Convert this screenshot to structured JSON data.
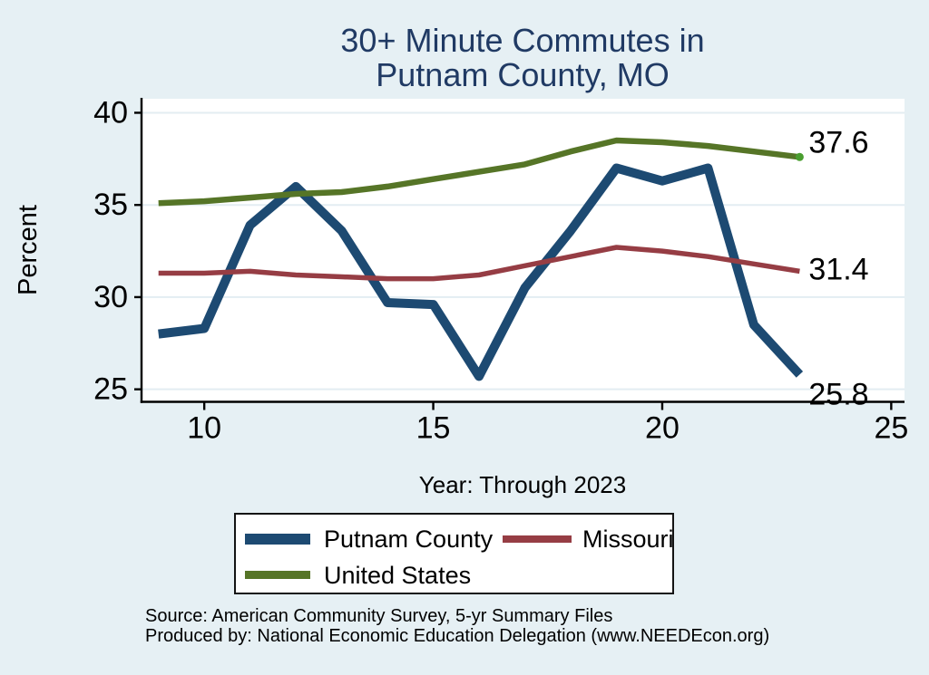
{
  "title": {
    "line1": "30+ Minute Commutes in",
    "line2": "Putnam County, MO"
  },
  "xlabel": "Year: Through 2023",
  "ylabel": "Percent",
  "source": {
    "line1": "Source: American Community Survey, 5-yr Summary Files",
    "line2": "Produced by: National Economic Education Delegation (www.NEEDEcon.org)"
  },
  "legend": {
    "items": [
      {
        "label": "Putnam County",
        "color": "#1d4a72"
      },
      {
        "label": "Missouri",
        "color": "#963d44"
      },
      {
        "label": "United States",
        "color": "#567527"
      }
    ]
  },
  "colors": {
    "background": "#e6f0f4",
    "plot_background": "#ffffff",
    "gridline": "#e3edf2",
    "axis": "#000000",
    "title_text": "#203a64",
    "putnam_line": "#1d4a72",
    "missouri_line": "#963d44",
    "us_line": "#567527",
    "us_end_marker": "#4a9e30"
  },
  "chart_data": {
    "type": "line",
    "x": [
      9,
      10,
      11,
      12,
      13,
      14,
      15,
      16,
      17,
      18,
      19,
      20,
      21,
      22,
      23
    ],
    "series": [
      {
        "name": "Putnam County",
        "color": "#1d4a72",
        "end_label": "25.8",
        "values": [
          28.0,
          28.3,
          33.9,
          36.0,
          33.6,
          29.7,
          29.6,
          25.7,
          30.5,
          33.6,
          37.0,
          36.3,
          37.0,
          28.5,
          25.8
        ]
      },
      {
        "name": "Missouri",
        "color": "#963d44",
        "end_label": "31.4",
        "values": [
          31.3,
          31.3,
          31.4,
          31.2,
          31.1,
          31.0,
          31.0,
          31.2,
          31.7,
          32.2,
          32.7,
          32.5,
          32.2,
          31.8,
          31.4
        ]
      },
      {
        "name": "United States",
        "color": "#567527",
        "end_label": "37.6",
        "end_marker_color": "#4a9e30",
        "values": [
          35.1,
          35.2,
          35.4,
          35.6,
          35.7,
          36.0,
          36.4,
          36.8,
          37.2,
          37.9,
          38.5,
          38.4,
          38.2,
          37.9,
          37.6
        ]
      }
    ],
    "title": "30+ Minute Commutes in Putnam County, MO",
    "xlabel": "Year: Through 2023",
    "ylabel": "Percent",
    "xticks": [
      10,
      15,
      20,
      25
    ],
    "yticks": [
      25,
      30,
      35,
      40
    ],
    "xlim": [
      8.63,
      25.29
    ],
    "ylim": [
      24.32,
      40.76
    ],
    "grid": true,
    "legend_position": "below"
  }
}
